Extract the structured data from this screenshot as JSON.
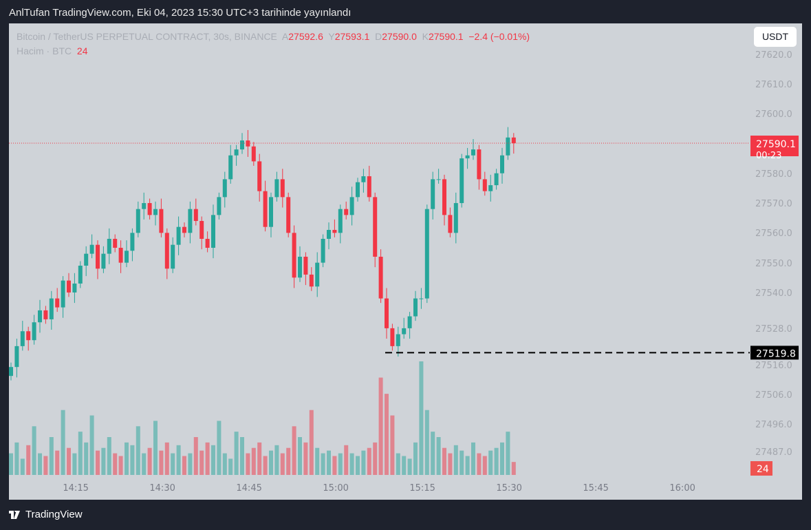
{
  "publish_line": "AnlTufan TradingView.com, Eki 04, 2023 15:30 UTC+3 tarihinde yayınlandı",
  "legend": {
    "symbol": "Bitcoin / TetherUS PERPETUAL CONTRACT, 30s, BINANCE",
    "o_label": "A",
    "o": "27592.6",
    "h_label": "Y",
    "h": "27593.1",
    "l_label": "D",
    "l": "27590.0",
    "c_label": "K",
    "c": "27590.1",
    "change": "−2.4 (−0.01%)"
  },
  "volume_legend": {
    "label": "Hacim · BTC",
    "value": "24"
  },
  "currency_button": "USDT",
  "brand": "TradingView",
  "colors": {
    "up": "#26a69a",
    "down": "#f23645",
    "background": "#cfd3d8"
  },
  "chart_data": {
    "type": "candlestick",
    "y_ticks": [
      "27620.0",
      "27610.0",
      "27600.0",
      "27580.0",
      "27570.0",
      "27560.0",
      "27550.0",
      "27540.0",
      "27528.0",
      "27516.0",
      "27506.0",
      "27496.0",
      "27487.0"
    ],
    "y_tick_values": [
      27620,
      27610,
      27600,
      27580,
      27570,
      27560,
      27550,
      27540,
      27528,
      27516,
      27506,
      27496,
      27487
    ],
    "x_ticks": [
      "14:15",
      "14:30",
      "14:45",
      "15:00",
      "15:15",
      "15:30",
      "15:45",
      "16:00"
    ],
    "start_time": "14:04",
    "open_first": 27512,
    "closes": [
      27515,
      27522,
      27527,
      27524,
      27530,
      27534,
      27531,
      27538,
      27535,
      27544,
      27540,
      27543,
      27549,
      27553,
      27556,
      27548,
      27553,
      27558,
      27555,
      27550,
      27554,
      27560,
      27568,
      27570,
      27566,
      27568,
      27560,
      27548,
      27556,
      27562,
      27560,
      27568,
      27564,
      27558,
      27555,
      27566,
      27572,
      27578,
      27586,
      27588,
      27591,
      27589,
      27584,
      27574,
      27562,
      27572,
      27578,
      27572,
      27560,
      27545,
      27552,
      27546,
      27542,
      27550,
      27558,
      27561,
      27560,
      27568,
      27566,
      27572,
      27577,
      27579,
      27572,
      27552,
      27538,
      27528,
      27522,
      27526,
      27528,
      27532,
      27538,
      27538,
      27568,
      27578,
      27578,
      27566,
      27560,
      27570,
      27585,
      27586,
      27588,
      27578,
      27574,
      27576,
      27580,
      27586,
      27592,
      27590.1
    ],
    "volumes": [
      40,
      60,
      30,
      55,
      90,
      40,
      35,
      70,
      45,
      120,
      50,
      40,
      80,
      60,
      110,
      45,
      50,
      70,
      40,
      35,
      60,
      55,
      90,
      40,
      50,
      100,
      45,
      60,
      40,
      55,
      35,
      40,
      70,
      45,
      60,
      55,
      100,
      40,
      30,
      80,
      70,
      40,
      50,
      60,
      35,
      45,
      55,
      40,
      50,
      90,
      70,
      60,
      120,
      50,
      40,
      45,
      35,
      40,
      55,
      40,
      35,
      45,
      50,
      60,
      180,
      150,
      110,
      40,
      35,
      30,
      60,
      210,
      120,
      80,
      70,
      50,
      40,
      55,
      45,
      35,
      60,
      40,
      35,
      45,
      50,
      60,
      80,
      24
    ],
    "current_price": {
      "value": "27590.1",
      "countdown": "00:23"
    },
    "horizontal_line": {
      "value": "27519.8"
    },
    "current_volume": "24"
  }
}
